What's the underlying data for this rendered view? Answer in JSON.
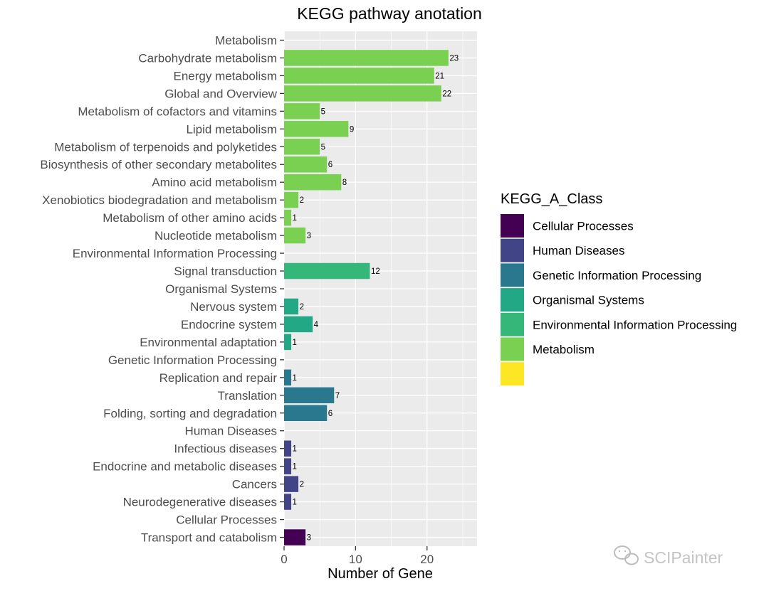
{
  "chart_data": {
    "type": "bar",
    "orientation": "horizontal",
    "title": "KEGG pathway anotation",
    "xlabel": "Number of Gene",
    "ylabel": "",
    "xlim": [
      0,
      27
    ],
    "x_ticks": [
      0,
      10,
      20
    ],
    "grid": true,
    "legend": {
      "title": "KEGG_A_Class",
      "position": "right",
      "entries": [
        {
          "label": "Cellular Processes",
          "color": "#440154"
        },
        {
          "label": "Human Diseases",
          "color": "#414487"
        },
        {
          "label": "Genetic Information Processing",
          "color": "#2A788E"
        },
        {
          "label": "Organismal Systems",
          "color": "#22A884"
        },
        {
          "label": "Environmental Information Processing",
          "color": "#35B779"
        },
        {
          "label": "Metabolism",
          "color": "#7AD151"
        },
        {
          "label": "",
          "color": "#FDE725"
        }
      ]
    },
    "categories": [
      {
        "label": "Metabolism",
        "value": null,
        "class": "Metabolism"
      },
      {
        "label": "Carbohydrate metabolism",
        "value": 23,
        "class": "Metabolism"
      },
      {
        "label": "Energy metabolism",
        "value": 21,
        "class": "Metabolism"
      },
      {
        "label": "Global and Overview",
        "value": 22,
        "class": "Metabolism"
      },
      {
        "label": "Metabolism of cofactors and vitamins",
        "value": 5,
        "class": "Metabolism"
      },
      {
        "label": "Lipid metabolism",
        "value": 9,
        "class": "Metabolism"
      },
      {
        "label": "Metabolism of terpenoids and polyketides",
        "value": 5,
        "class": "Metabolism"
      },
      {
        "label": "Biosynthesis of other secondary metabolites",
        "value": 6,
        "class": "Metabolism"
      },
      {
        "label": "Amino acid metabolism",
        "value": 8,
        "class": "Metabolism"
      },
      {
        "label": "Xenobiotics biodegradation and metabolism",
        "value": 2,
        "class": "Metabolism"
      },
      {
        "label": "Metabolism of other amino acids",
        "value": 1,
        "class": "Metabolism"
      },
      {
        "label": "Nucleotide metabolism",
        "value": 3,
        "class": "Metabolism"
      },
      {
        "label": "Environmental Information Processing",
        "value": null,
        "class": "Environmental Information Processing"
      },
      {
        "label": "Signal transduction",
        "value": 12,
        "class": "Environmental Information Processing"
      },
      {
        "label": "Organismal Systems",
        "value": null,
        "class": "Organismal Systems"
      },
      {
        "label": "Nervous system",
        "value": 2,
        "class": "Organismal Systems"
      },
      {
        "label": "Endocrine system",
        "value": 4,
        "class": "Organismal Systems"
      },
      {
        "label": "Environmental adaptation",
        "value": 1,
        "class": "Organismal Systems"
      },
      {
        "label": "Genetic Information Processing",
        "value": null,
        "class": "Genetic Information Processing"
      },
      {
        "label": "Replication and repair",
        "value": 1,
        "class": "Genetic Information Processing"
      },
      {
        "label": "Translation",
        "value": 7,
        "class": "Genetic Information Processing"
      },
      {
        "label": "Folding, sorting and degradation",
        "value": 6,
        "class": "Genetic Information Processing"
      },
      {
        "label": "Human Diseases",
        "value": null,
        "class": "Human Diseases"
      },
      {
        "label": "Infectious diseases",
        "value": 1,
        "class": "Human Diseases"
      },
      {
        "label": "Endocrine and metabolic diseases",
        "value": 1,
        "class": "Human Diseases"
      },
      {
        "label": "Cancers",
        "value": 2,
        "class": "Human Diseases"
      },
      {
        "label": "Neurodegenerative diseases",
        "value": 1,
        "class": "Human Diseases"
      },
      {
        "label": "Cellular Processes",
        "value": null,
        "class": "Cellular Processes"
      },
      {
        "label": "Transport and catabolism",
        "value": 3,
        "class": "Cellular Processes"
      }
    ]
  },
  "watermark": {
    "text": "SCIPainter",
    "icon": "wechat-icon"
  }
}
